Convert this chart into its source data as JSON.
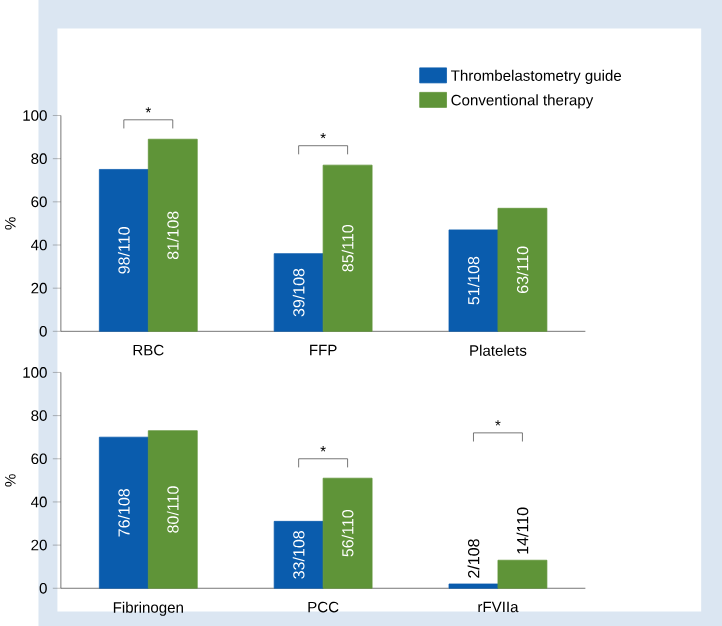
{
  "chart_data": [
    {
      "type": "bar",
      "categories": [
        "RBC",
        "FFP",
        "Platelets"
      ],
      "ylabel": "%",
      "ylim": [
        0,
        100
      ],
      "yticks": [
        0,
        20,
        40,
        60,
        80,
        100
      ],
      "legend": "top right",
      "series": [
        {
          "name": "Thrombelastometry guide",
          "color": "#0a5cad",
          "values": [
            75,
            36,
            47
          ],
          "value_labels": [
            "98/110",
            "39/108",
            "51/108"
          ]
        },
        {
          "name": "Conventional therapy",
          "color": "#5f9438",
          "values": [
            89,
            77,
            57
          ],
          "value_labels": [
            "81/108",
            "85/110",
            "63/110"
          ]
        }
      ],
      "annotations": [
        {
          "text": "*",
          "x": "RBC",
          "y": 89
        },
        {
          "text": "*",
          "x": "FFP",
          "y": 77
        }
      ]
    },
    {
      "type": "bar",
      "categories": [
        "Fibrinogen",
        "PCC",
        "rFVIIa"
      ],
      "ylabel": "%",
      "ylim": [
        0,
        100
      ],
      "yticks": [
        0,
        20,
        40,
        60,
        80,
        100
      ],
      "series": [
        {
          "color": "#0a5cad",
          "values": [
            70,
            31,
            2
          ],
          "value_labels": [
            "76/108",
            "33/108",
            "2/108"
          ]
        },
        {
          "color": "#5f9438",
          "values": [
            73,
            51,
            13
          ],
          "value_labels": [
            "80/110",
            "56/110",
            "14/110"
          ]
        }
      ],
      "annotations": [
        {
          "text": "*",
          "x": "PCC",
          "y": 51
        },
        "*"
      ]
    }
  ]
}
